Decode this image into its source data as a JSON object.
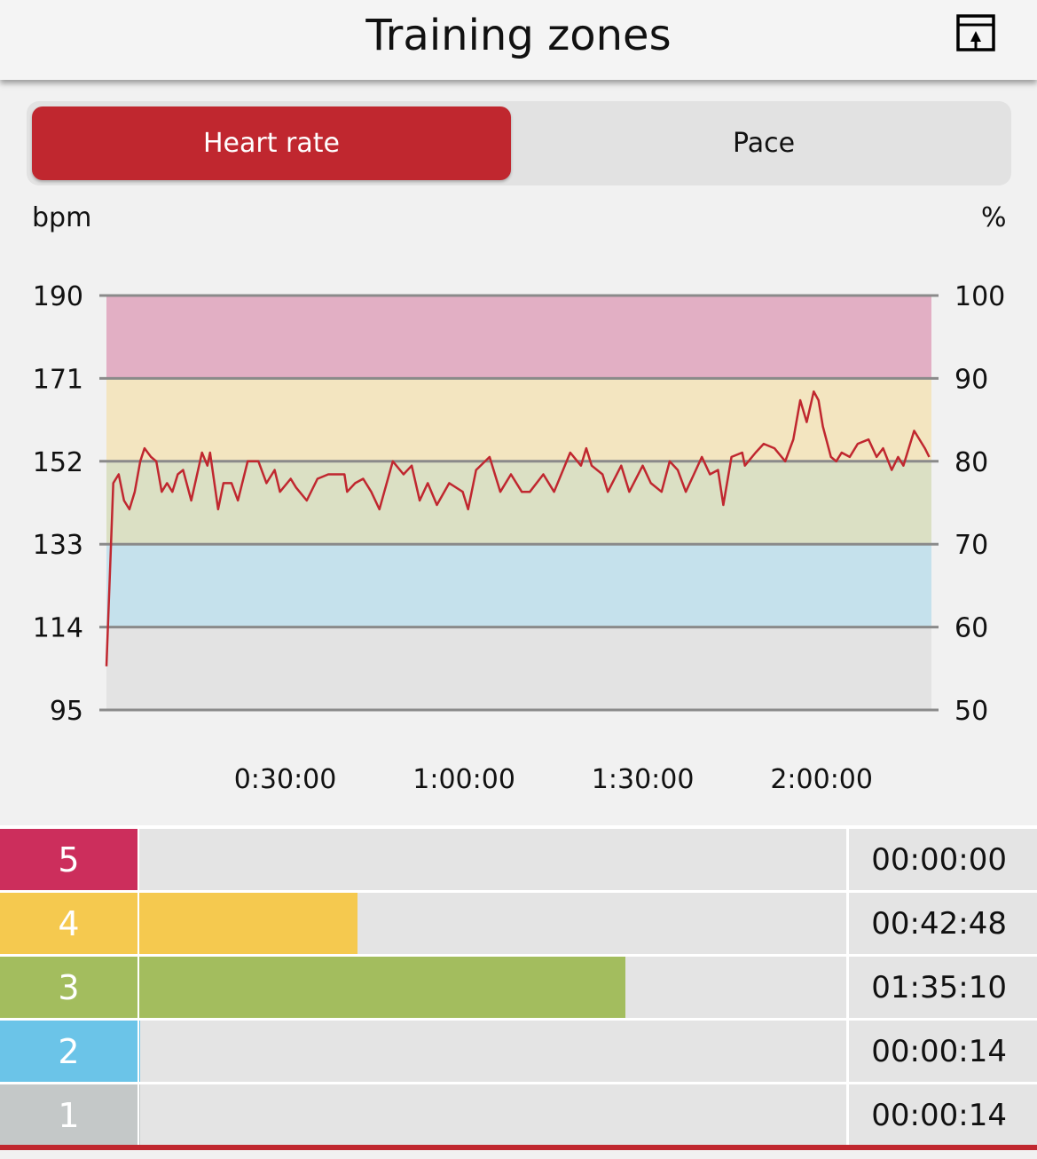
{
  "header": {
    "title": "Training zones",
    "export_icon": "export-window-arrow-up-icon"
  },
  "tabs": [
    {
      "label": "Heart rate",
      "active": true
    },
    {
      "label": "Pace",
      "active": false
    }
  ],
  "colors": {
    "accent": "#c0272f",
    "line": "#c0272f",
    "gridline": "#8a8a8a"
  },
  "chart_data": {
    "type": "line",
    "ylabel_left": "bpm",
    "ylabel_right": "%",
    "y_left_ticks": [
      "95",
      "114",
      "133",
      "152",
      "171",
      "190"
    ],
    "y_right_ticks": [
      "50",
      "60",
      "70",
      "80",
      "90",
      "100"
    ],
    "ylim": [
      95,
      190
    ],
    "x_ticks": [
      "0:30:00",
      "1:00:00",
      "1:30:00",
      "2:00:00"
    ],
    "xlim": [
      "0:00:00",
      "2:18:26"
    ],
    "grid": true,
    "bands": [
      {
        "from": 95,
        "to": 114,
        "color": "#e3e3e3"
      },
      {
        "from": 114,
        "to": 133,
        "color": "#c5e1ec"
      },
      {
        "from": 133,
        "to": 152,
        "color": "#dbe0c4"
      },
      {
        "from": 152,
        "to": 171,
        "color": "#f3e5c0"
      },
      {
        "from": 171,
        "to": 190,
        "color": "#e2afc4"
      }
    ],
    "series": [
      {
        "points": [
          [
            "0:00:00",
            105
          ],
          [
            "0:01:09",
            147
          ],
          [
            "0:02:03",
            149
          ],
          [
            "0:02:57",
            143
          ],
          [
            "0:03:51",
            141
          ],
          [
            "0:04:45",
            145
          ],
          [
            "0:05:40",
            152
          ],
          [
            "0:06:23",
            155
          ],
          [
            "0:07:28",
            153
          ],
          [
            "0:08:22",
            152
          ],
          [
            "0:09:16",
            145
          ],
          [
            "0:10:10",
            147
          ],
          [
            "0:11:04",
            145
          ],
          [
            "0:11:58",
            149
          ],
          [
            "0:12:52",
            150
          ],
          [
            "0:14:14",
            143
          ],
          [
            "0:16:02",
            154
          ],
          [
            "0:16:56",
            151
          ],
          [
            "0:17:23",
            154
          ],
          [
            "0:18:44",
            141
          ],
          [
            "0:19:38",
            147
          ],
          [
            "0:20:59",
            147
          ],
          [
            "0:22:04",
            143
          ],
          [
            "0:23:42",
            152
          ],
          [
            "0:25:30",
            152
          ],
          [
            "0:26:51",
            147
          ],
          [
            "0:28:13",
            150
          ],
          [
            "0:29:07",
            145
          ],
          [
            "0:30:55",
            148
          ],
          [
            "0:31:49",
            146
          ],
          [
            "0:33:37",
            143
          ],
          [
            "0:35:25",
            148
          ],
          [
            "0:37:14",
            149
          ],
          [
            "0:39:56",
            149
          ],
          [
            "0:40:23",
            145
          ],
          [
            "0:41:44",
            147
          ],
          [
            "0:43:05",
            148
          ],
          [
            "0:44:26",
            145
          ],
          [
            "0:45:48",
            141
          ],
          [
            "0:48:03",
            152
          ],
          [
            "0:49:51",
            149
          ],
          [
            "0:51:13",
            151
          ],
          [
            "0:52:34",
            143
          ],
          [
            "0:53:55",
            147
          ],
          [
            "0:55:27",
            142
          ],
          [
            "0:57:31",
            147
          ],
          [
            "0:59:47",
            145
          ],
          [
            "1:00:41",
            141
          ],
          [
            "1:02:02",
            150
          ],
          [
            "1:04:17",
            153
          ],
          [
            "1:06:05",
            145
          ],
          [
            "1:07:53",
            149
          ],
          [
            "1:09:42",
            145
          ],
          [
            "1:11:03",
            145
          ],
          [
            "1:13:19",
            149
          ],
          [
            "1:15:07",
            145
          ],
          [
            "1:17:49",
            154
          ],
          [
            "1:19:37",
            151
          ],
          [
            "1:20:31",
            155
          ],
          [
            "1:21:25",
            151
          ],
          [
            "1:23:14",
            149
          ],
          [
            "1:24:08",
            145
          ],
          [
            "1:26:23",
            151
          ],
          [
            "1:27:44",
            145
          ],
          [
            "1:29:59",
            151
          ],
          [
            "1:31:21",
            147
          ],
          [
            "1:33:09",
            145
          ],
          [
            "1:34:30",
            152
          ],
          [
            "1:35:52",
            150
          ],
          [
            "1:37:13",
            145
          ],
          [
            "1:38:34",
            149
          ],
          [
            "1:39:55",
            153
          ],
          [
            "1:41:16",
            149
          ],
          [
            "1:42:37",
            150
          ],
          [
            "1:43:31",
            142
          ],
          [
            "1:44:53",
            153
          ],
          [
            "1:46:41",
            154
          ],
          [
            "1:47:08",
            151
          ],
          [
            "1:48:56",
            154
          ],
          [
            "1:50:17",
            156
          ],
          [
            "1:52:05",
            155
          ],
          [
            "1:53:54",
            152
          ],
          [
            "1:55:15",
            157
          ],
          [
            "1:56:25",
            166
          ],
          [
            "1:57:30",
            161
          ],
          [
            "1:58:41",
            168
          ],
          [
            "1:59:29",
            166
          ],
          [
            "2:00:13",
            160
          ],
          [
            "2:01:34",
            153
          ],
          [
            "2:02:28",
            152
          ],
          [
            "2:03:22",
            154
          ],
          [
            "2:04:43",
            153
          ],
          [
            "2:06:04",
            156
          ],
          [
            "2:07:53",
            157
          ],
          [
            "2:09:14",
            153
          ],
          [
            "2:10:19",
            155
          ],
          [
            "2:11:46",
            150
          ],
          [
            "2:12:50",
            153
          ],
          [
            "2:13:44",
            151
          ],
          [
            "2:15:32",
            159
          ],
          [
            "2:17:20",
            155
          ],
          [
            "2:18:04",
            153
          ]
        ]
      }
    ]
  },
  "zones": [
    {
      "number": "5",
      "time": "00:00:00",
      "fraction": 0.0,
      "color": "#cc2e5c"
    },
    {
      "number": "4",
      "time": "00:42:48",
      "fraction": 0.309,
      "color": "#f5c94f"
    },
    {
      "number": "3",
      "time": "01:35:10",
      "fraction": 0.688,
      "color": "#a3bd5e"
    },
    {
      "number": "2",
      "time": "00:00:14",
      "fraction": 0.0017,
      "color": "#6bc4e8"
    },
    {
      "number": "1",
      "time": "00:00:14",
      "fraction": 0.0017,
      "color": "#c4c8c8"
    }
  ]
}
